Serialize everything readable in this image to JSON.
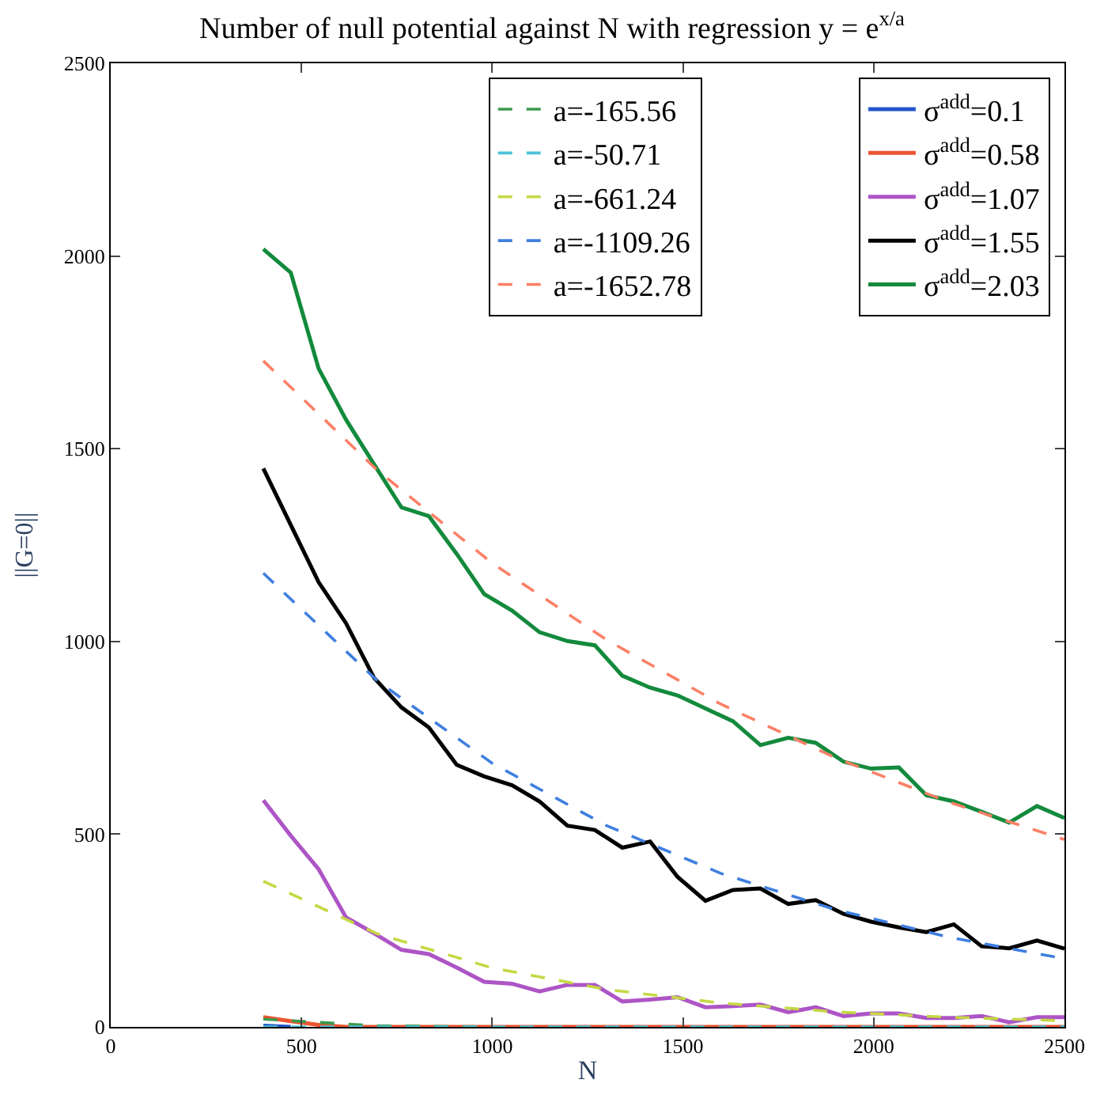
{
  "chart_data": {
    "type": "line",
    "title": "Number of null potential against N with regression y = e$^{x/a}$",
    "xlabel": "N",
    "ylabel": "||G=0||",
    "x": [
      400,
      472,
      545,
      617,
      690,
      762,
      834,
      907,
      979,
      1052,
      1124,
      1197,
      1269,
      1341,
      1414,
      1486,
      1559,
      1631,
      1703,
      1776,
      1848,
      1921,
      1993,
      2066,
      2138,
      2210,
      2283,
      2355,
      2428,
      2500
    ],
    "xlim": [
      0,
      2500
    ],
    "xticks": [
      0,
      500,
      1000,
      1500,
      2000,
      2500
    ],
    "ylim": [
      0,
      2500
    ],
    "yticks": [
      0,
      500,
      1000,
      1500,
      2000,
      2500
    ],
    "legend": "top right",
    "series": [
      {
        "name": "a=-165.56",
        "color": "#3c9a4e",
        "line_style": "dashed",
        "x": [
          400,
          700,
          1000
        ],
        "values": [
          20,
          3,
          0
        ]
      },
      {
        "name": "a=-50.71",
        "color": "#4cc3d9",
        "line_style": "dashed",
        "x": [
          400,
          700,
          1000,
          1300,
          1600,
          1900,
          2200,
          2500
        ],
        "values": [
          0,
          0,
          0,
          0,
          0,
          0,
          0,
          0
        ]
      },
      {
        "name": "a=-661.24",
        "color": "#c5d844",
        "line_style": "dashed",
        "x": [
          400,
          700,
          1000,
          1300,
          1600,
          1900,
          2200,
          2500
        ],
        "values": [
          378,
          241,
          153,
          97,
          62,
          39,
          25,
          16
        ]
      },
      {
        "name": "a=-1109.26",
        "color": "#3f7fe0",
        "line_style": "dashed",
        "x": [
          400,
          700,
          1000,
          1300,
          1600,
          1900,
          2200,
          2500
        ],
        "values": [
          1177,
          897,
          684,
          522,
          398,
          304,
          232,
          177
        ]
      },
      {
        "name": "a=-1652.78",
        "color": "#fb8066",
        "line_style": "dashed",
        "x": [
          400,
          700,
          1000,
          1300,
          1600,
          1900,
          2200,
          2500
        ],
        "values": [
          1728,
          1443,
          1203,
          1004,
          837,
          698,
          582,
          486
        ]
      },
      {
        "name": "σ$^{add}$=0.1",
        "color": "#2456c8",
        "line_style": "solid",
        "values": [
          3,
          0,
          null,
          null,
          null,
          null,
          null,
          null,
          null,
          null,
          null,
          null,
          null,
          null,
          null,
          null,
          null,
          null,
          null,
          null,
          null,
          null,
          null,
          null,
          null,
          null,
          null,
          null,
          null,
          null
        ]
      },
      {
        "name": "σ$^{add}$=0.58",
        "color": "#ec5530",
        "line_style": "solid",
        "values": [
          25,
          15,
          5,
          0,
          0,
          0,
          0,
          0,
          0,
          0,
          0,
          0,
          0,
          0,
          0,
          0,
          0,
          0,
          0,
          0,
          0,
          0,
          0,
          0,
          0,
          0,
          0,
          0,
          0,
          0
        ]
      },
      {
        "name": "σ$^{add}$=1.07",
        "color": "#ad55c6",
        "line_style": "solid",
        "values": [
          588,
          496,
          409,
          284,
          243,
          200,
          189,
          154,
          117,
          112,
          92,
          109,
          109,
          66,
          71,
          77,
          51,
          54,
          58,
          38,
          51,
          28,
          35,
          35,
          23,
          23,
          28,
          12,
          25,
          25
        ]
      },
      {
        "name": "σ$^{add}$=1.55",
        "color": "#000000",
        "line_style": "solid",
        "values": [
          1449,
          1302,
          1154,
          1047,
          906,
          829,
          777,
          680,
          650,
          627,
          585,
          522,
          511,
          465,
          481,
          389,
          327,
          355,
          359,
          319,
          329,
          293,
          273,
          258,
          246,
          266,
          209,
          204,
          224,
          203
        ]
      },
      {
        "name": "σ$^{add}$=2.03",
        "color": "#138a3c",
        "line_style": "solid",
        "values": [
          2018,
          1957,
          1708,
          1575,
          1460,
          1348,
          1325,
          1227,
          1123,
          1080,
          1024,
          1001,
          990,
          911,
          880,
          860,
          826,
          793,
          731,
          750,
          737,
          688,
          670,
          673,
          601,
          585,
          558,
          530,
          573,
          542
        ]
      }
    ]
  }
}
